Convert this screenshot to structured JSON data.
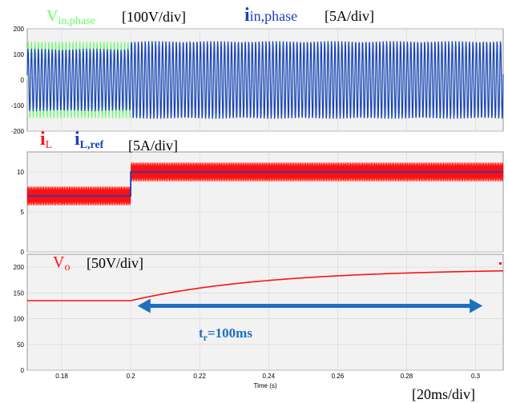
{
  "colors": {
    "vin": "#66ff66",
    "iin": "#1a3fbf",
    "il": "#ff1010",
    "ilref": "#1a3fbf",
    "vo": "#ff1010",
    "arrow": "#1f6fbf",
    "plot_bg": "#f2f2f2",
    "grid": "#d6d6d6",
    "frame": "#9a9a9a"
  },
  "labels": {
    "vin_main": "V",
    "vin_sub": "in,phase",
    "vin_scale": "[100V/div]",
    "iin_main": "i",
    "iin_sub": "in,phase",
    "iin_scale": "[5A/div]",
    "il_main": "i",
    "il_sub": "L",
    "ilref_main": "i",
    "ilref_sub": "L,ref",
    "il_scale": "[5A/div]",
    "vo_main": "V",
    "vo_sub": "o",
    "vo_scale": "[50V/div]",
    "rise_main": "t",
    "rise_sub": "r",
    "rise_value": "=100ms",
    "x_scale": "[20ms/div]",
    "x_axis_label": "Time (s)"
  },
  "chart_data": [
    {
      "type": "line",
      "panel": "phase",
      "x_range": [
        0.17,
        0.308
      ],
      "ylim": [
        -200,
        200
      ],
      "yticks": [
        "200",
        "100",
        "0",
        "-100",
        "-200"
      ],
      "series": [
        {
          "name": "Vin,phase",
          "kind": "sinusoid",
          "amplitude": 150,
          "frequency_hz": 1000,
          "color_key": "vin"
        },
        {
          "name": "iin,phase",
          "kind": "sinusoid",
          "amplitude_before_step": 120,
          "amplitude_after_step": 150,
          "step_time": 0.2,
          "frequency_hz": 1000,
          "color_key": "iin"
        }
      ]
    },
    {
      "type": "line",
      "panel": "inductor",
      "x_range": [
        0.17,
        0.308
      ],
      "ylim": [
        0,
        12.5
      ],
      "yticks": [
        "10",
        "5",
        "0"
      ],
      "series": [
        {
          "name": "iL",
          "kind": "ripple",
          "mean_before": 7,
          "mean_after": 10,
          "ripple": 1.2,
          "step_time": 0.2,
          "color_key": "il"
        },
        {
          "name": "iL,ref",
          "kind": "step",
          "before": 7,
          "after": 10,
          "step_time": 0.2,
          "color_key": "ilref"
        }
      ]
    },
    {
      "type": "line",
      "panel": "output",
      "x_range": [
        0.17,
        0.308
      ],
      "ylim": [
        0,
        225
      ],
      "yticks": [
        "200",
        "150",
        "100",
        "50",
        "0"
      ],
      "xticks": [
        "0.18",
        "0.2",
        "0.22",
        "0.24",
        "0.26",
        "0.28",
        "0.3"
      ],
      "series": [
        {
          "name": "Vo",
          "kind": "first_order_step",
          "before": 135,
          "after": 197,
          "step_time": 0.2,
          "tau_s": 0.04,
          "color_key": "vo"
        }
      ],
      "annotation": {
        "text": "tr=100ms",
        "from_x": 0.202,
        "to_x": 0.302,
        "y": 125
      }
    }
  ]
}
